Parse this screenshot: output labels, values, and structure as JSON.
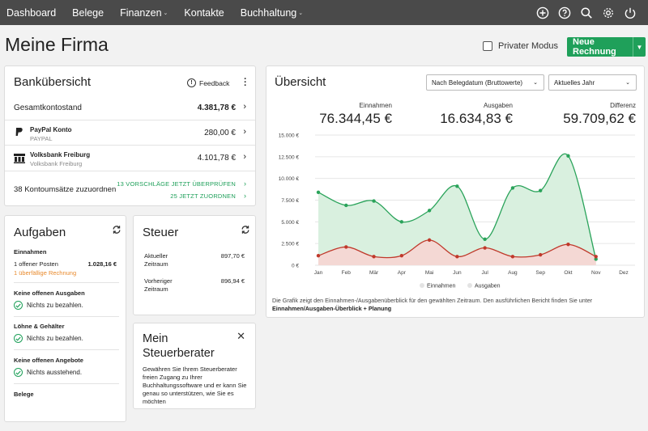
{
  "nav": {
    "items": [
      {
        "label": "Dashboard",
        "dropdown": false
      },
      {
        "label": "Belege",
        "dropdown": false
      },
      {
        "label": "Finanzen",
        "dropdown": true
      },
      {
        "label": "Kontakte",
        "dropdown": false
      },
      {
        "label": "Buchhaltung",
        "dropdown": true
      }
    ],
    "icons": [
      "plus-circle-icon",
      "help-icon",
      "search-icon",
      "gear-icon",
      "power-icon"
    ]
  },
  "header": {
    "title": "Meine Firma",
    "private_mode_label": "Privater Modus",
    "new_invoice_label": "Neue Rechnung"
  },
  "bank": {
    "title": "Bankübersicht",
    "feedback_label": "Feedback",
    "total_label": "Gesamtkontostand",
    "total_value": "4.381,78 €",
    "accounts": [
      {
        "name": "PayPal Konto",
        "sub": "PAYPAL",
        "amount": "280,00 €",
        "icon": "paypal-icon"
      },
      {
        "name": "Volksbank Freiburg",
        "sub": "Volksbank Freiburg",
        "amount": "4.101,78 €",
        "icon": "bank-icon"
      }
    ],
    "unassigned_label": "38 Kontoumsätze zuzuordnen",
    "suggest_link": "13 VORSCHLÄGE JETZT ÜBERPRÜFEN",
    "assign_link": "25 JETZT ZUORDNEN"
  },
  "tasks": {
    "title": "Aufgaben",
    "income_heading": "Einnahmen",
    "open_items": "1 offener Posten",
    "open_amount": "1.028,16 €",
    "overdue": "1 überfällige Rechnung",
    "expenses_heading": "Keine offenen Ausgaben",
    "expenses_status": "Nichts zu bezahlen.",
    "wages_heading": "Löhne & Gehälter",
    "wages_status": "Nichts zu bezahlen.",
    "offers_heading": "Keine offenen Angebote",
    "offers_status": "Nichts ausstehend.",
    "receipts_heading": "Belege"
  },
  "tax": {
    "title": "Steuer",
    "current_label": "Aktueller Zeitraum",
    "current_value": "897,70 €",
    "previous_label": "Vorheriger Zeitraum",
    "previous_value": "896,94 €"
  },
  "advisor": {
    "title": "Mein Steuerberater",
    "text": "Gewähren Sie Ihrem Steuerberater freien Zugang zu Ihrer Buchhaltungssoftware und er kann Sie genau so unterstützen, wie Sie es möchten"
  },
  "overview": {
    "title": "Übersicht",
    "select_basis": "Nach Belegdatum (Bruttowerte)",
    "select_period": "Aktuelles Jahr",
    "kpis": [
      {
        "label": "Einnahmen",
        "value": "76.344,45 €"
      },
      {
        "label": "Ausgaben",
        "value": "16.634,83 €"
      },
      {
        "label": "Differenz",
        "value": "59.709,62 €"
      }
    ],
    "caption_text": "Die Grafik zeigt den Einnahmen-/Ausgabenüberblick für den gewählten Zeitraum. Den ausführlichen Bericht finden Sie unter ",
    "caption_link": "Einnahmen/Ausgaben-Überblick + Planung",
    "colors": {
      "income": "#2aa35a",
      "income_fill": "#d9f0df",
      "expenses": "#c0392b",
      "expenses_fill": "#f6d5d3",
      "accent": "#1fa05a"
    }
  },
  "chart_data": {
    "type": "area",
    "categories": [
      "Jan",
      "Feb",
      "Mär",
      "Apr",
      "Mai",
      "Jun",
      "Jul",
      "Aug",
      "Sep",
      "Okt",
      "Nov",
      "Dez"
    ],
    "series": [
      {
        "name": "Einnahmen",
        "values": [
          8400,
          6900,
          7400,
          5000,
          6300,
          9100,
          3000,
          8900,
          8600,
          12600,
          700,
          null
        ]
      },
      {
        "name": "Ausgaben",
        "values": [
          1100,
          2100,
          1000,
          1100,
          2900,
          1000,
          2000,
          1000,
          1200,
          2400,
          1000,
          null
        ]
      }
    ],
    "yticks": [
      "0 €",
      "2.500 €",
      "5.000 €",
      "7.500 €",
      "10.000 €",
      "12.500 €",
      "15.000 €"
    ],
    "ylim": [
      0,
      15000
    ],
    "legend": [
      "Einnahmen",
      "Ausgaben"
    ],
    "legend_position": "bottom",
    "grid": true
  }
}
